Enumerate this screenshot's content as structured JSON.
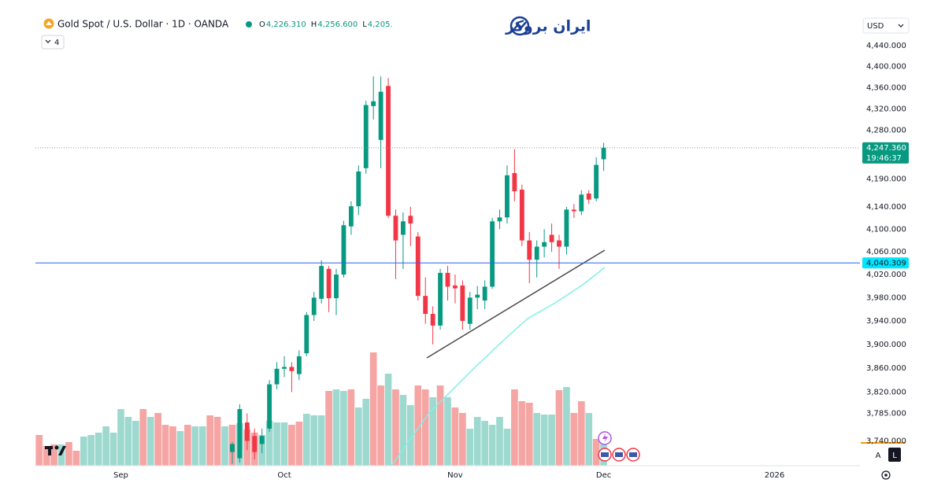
{
  "chart_data": {
    "type": "candlestick",
    "title": "Gold Spot / U.S. Dollar · 1D · OANDA",
    "header_ohlc": [
      {
        "key": "O",
        "value": "4,226.310"
      },
      {
        "key": "H",
        "value": "4,256.600"
      },
      {
        "key": "L",
        "value": "4,205."
      }
    ],
    "open": [
      null,
      null,
      null,
      null,
      null,
      null,
      null,
      null,
      null,
      null,
      null,
      null,
      null,
      null,
      null,
      null,
      null,
      null,
      null,
      null,
      null,
      null,
      null,
      null,
      null,
      null,
      3722,
      3712,
      3770,
      3748,
      3735,
      3760,
      3833,
      3859,
      3862,
      3850,
      3885,
      3950,
      3978,
      4030,
      3979,
      4020,
      4105,
      4141,
      4210,
      4325,
      4262,
      4363,
      4124,
      4090,
      4124,
      4087,
      3983,
      3952,
      3932,
      4023,
      4001,
      4001,
      3935,
      3980,
      3975,
      3999,
      4114,
      4121,
      4201,
      4171,
      4080,
      4046,
      4069,
      4090,
      4080,
      4069,
      4135,
      4132,
      4164,
      4155,
      4226.31
    ],
    "high": [
      null,
      null,
      null,
      null,
      null,
      null,
      null,
      null,
      null,
      null,
      null,
      null,
      null,
      null,
      null,
      null,
      null,
      null,
      null,
      null,
      null,
      null,
      null,
      null,
      null,
      null,
      3738,
      3800,
      3785,
      3760,
      3760,
      3840,
      3870,
      3880,
      3870,
      3890,
      3955,
      3990,
      4045,
      4035,
      4030,
      4115,
      4150,
      4215,
      4335,
      4381,
      4381,
      4378,
      4135,
      4130,
      4140,
      4095,
      4015,
      3965,
      4030,
      4035,
      4020,
      4010,
      3990,
      4000,
      4010,
      4120,
      4135,
      4215,
      4245,
      4180,
      4095,
      4080,
      4100,
      4110,
      4090,
      4140,
      4145,
      4170,
      4170,
      4230,
      4256.6
    ],
    "low": [
      null,
      null,
      null,
      null,
      null,
      null,
      null,
      null,
      null,
      null,
      null,
      null,
      null,
      null,
      null,
      null,
      null,
      null,
      null,
      null,
      null,
      null,
      null,
      null,
      null,
      null,
      3703,
      3705,
      3725,
      3710,
      3720,
      3755,
      3825,
      3845,
      3820,
      3840,
      3880,
      3940,
      3970,
      3955,
      3950,
      4015,
      4090,
      4125,
      4200,
      4300,
      4210,
      4120,
      4012,
      4030,
      4070,
      3975,
      3935,
      3900,
      3925,
      3975,
      3970,
      3925,
      3925,
      3960,
      3960,
      3995,
      4100,
      4110,
      4150,
      4070,
      4005,
      4015,
      4050,
      4060,
      4030,
      4055,
      4120,
      4125,
      4145,
      4150,
      4205
    ],
    "close": [
      null,
      null,
      null,
      null,
      null,
      null,
      null,
      null,
      null,
      null,
      null,
      null,
      null,
      null,
      null,
      null,
      null,
      null,
      null,
      null,
      null,
      null,
      null,
      null,
      null,
      null,
      3735,
      3792,
      3740,
      3722,
      3748,
      3833,
      3859,
      3862,
      3855,
      3880,
      3950,
      3980,
      4035,
      3979,
      4020,
      4107,
      4141,
      4204,
      4327,
      4334,
      4352,
      4124,
      4080,
      4114,
      4110,
      3983,
      3952,
      3932,
      4023,
      3999,
      3996,
      3940,
      3980,
      3985,
      3999,
      4114,
      4121,
      4197,
      4168,
      4080,
      4046,
      4069,
      4077,
      4077,
      4069,
      4135,
      4132,
      4162,
      4153,
      4216,
      4247.36
    ],
    "volume": [
      39,
      25,
      27,
      27,
      30,
      19,
      37,
      39,
      42,
      50,
      42,
      72,
      62,
      57,
      72,
      62,
      67,
      52,
      50,
      44,
      52,
      50,
      50,
      64,
      62,
      50,
      52,
      54,
      46,
      42,
      39,
      57,
      55,
      55,
      52,
      56,
      66,
      64,
      64,
      95,
      97,
      95,
      97,
      74,
      85,
      144,
      102,
      117,
      97,
      90,
      77,
      102,
      97,
      87,
      102,
      87,
      74,
      67,
      47,
      62,
      57,
      52,
      62,
      47,
      97,
      82,
      80,
      67,
      65,
      65,
      96,
      100,
      67,
      82,
      67,
      34,
      37
    ],
    "volume_colors": [
      "#f5a5a3",
      "#f5a5a3",
      "#f5a5a3",
      "#9ed9d0",
      "#f5a5a3",
      "#f5a5a3",
      "#9ed9d0",
      "#9ed9d0",
      "#9ed9d0",
      "#9ed9d0",
      "#9ed9d0",
      "#9ed9d0",
      "#9ed9d0",
      "#9ed9d0",
      "#f5a5a3",
      "#9ed9d0",
      "#f5a5a3",
      "#f5a5a3",
      "#f5a5a3",
      "#9ed9d0",
      "#f5a5a3",
      "#9ed9d0",
      "#9ed9d0",
      "#f5a5a3",
      "#f5a5a3",
      "#9ed9d0",
      "#f5a5a3",
      "#9ed9d0",
      "#f5a5a3",
      "#f5a5a3",
      "#9ed9d0",
      "#9ed9d0",
      "#9ed9d0",
      "#9ed9d0",
      "#f5a5a3",
      "#f5a5a3",
      "#9ed9d0",
      "#9ed9d0",
      "#9ed9d0",
      "#f5a5a3",
      "#9ed9d0",
      "#9ed9d0",
      "#f5a5a3",
      "#9ed9d0",
      "#9ed9d0",
      "#f5a5a3",
      "#f5a5a3",
      "#9ed9d0",
      "#f5a5a3",
      "#9ed9d0",
      "#9ed9d0",
      "#f5a5a3",
      "#f5a5a3",
      "#9ed9d0",
      "#f5a5a3",
      "#9ed9d0",
      "#f5a5a3",
      "#f5a5a3",
      "#9ed9d0",
      "#9ed9d0",
      "#9ed9d0",
      "#9ed9d0",
      "#9ed9d0",
      "#9ed9d0",
      "#f5a5a3",
      "#f5a5a3",
      "#f5a5a3",
      "#9ed9d0",
      "#9ed9d0",
      "#9ed9d0",
      "#f5a5a3",
      "#9ed9d0",
      "#f5a5a3",
      "#f5a5a3",
      "#9ed9d0",
      "#f5a5a3",
      "#9ed9d0"
    ],
    "up_color": "#089981",
    "down_color": "#f23645",
    "xlim": [
      -0.5,
      110.5
    ],
    "xticks": [
      {
        "value": 11,
        "label": "Sep"
      },
      {
        "value": 33,
        "label": "Oct"
      },
      {
        "value": 56,
        "label": "Nov"
      },
      {
        "value": 76,
        "label": "Dec"
      },
      {
        "value": 99,
        "label": "2026"
      }
    ],
    "ylim": [
      3700,
      4498
    ],
    "log_scale": true,
    "grid": false,
    "yticks": [
      {
        "value": 4440,
        "label": "4,440.000"
      },
      {
        "value": 4400,
        "label": "4,400.000"
      },
      {
        "value": 4360,
        "label": "4,360.000"
      },
      {
        "value": 4320,
        "label": "4,320.000"
      },
      {
        "value": 4280,
        "label": "4,280.000"
      },
      {
        "value": 4190,
        "label": "4,190.000"
      },
      {
        "value": 4140,
        "label": "4,140.000"
      },
      {
        "value": 4100,
        "label": "4,100.000"
      },
      {
        "value": 4060,
        "label": "4,060.000"
      },
      {
        "value": 4020,
        "label": "4,020.000"
      },
      {
        "value": 3980,
        "label": "3,980.000"
      },
      {
        "value": 3940,
        "label": "3,940.000"
      },
      {
        "value": 3900,
        "label": "3,900.000"
      },
      {
        "value": 3860,
        "label": "3,860.000"
      },
      {
        "value": 3820,
        "label": "3,820.000"
      },
      {
        "value": 3785,
        "label": "3,785.000"
      },
      {
        "value": 3740,
        "label": "3,740.000"
      }
    ],
    "last_price": {
      "value": 4247.36,
      "label": "4,247.360",
      "countdown": "19:46:37",
      "color": "#089981"
    },
    "alert_line": {
      "value": 4040.309,
      "label": "4,040.309",
      "color": "#2962ff",
      "tag_color": "#00e5ff"
    }
  },
  "toolbar": {
    "collapse_count": "4",
    "currency": "USD",
    "scale_auto": "A",
    "scale_log": "L"
  },
  "logo": "ایران بروکر"
}
